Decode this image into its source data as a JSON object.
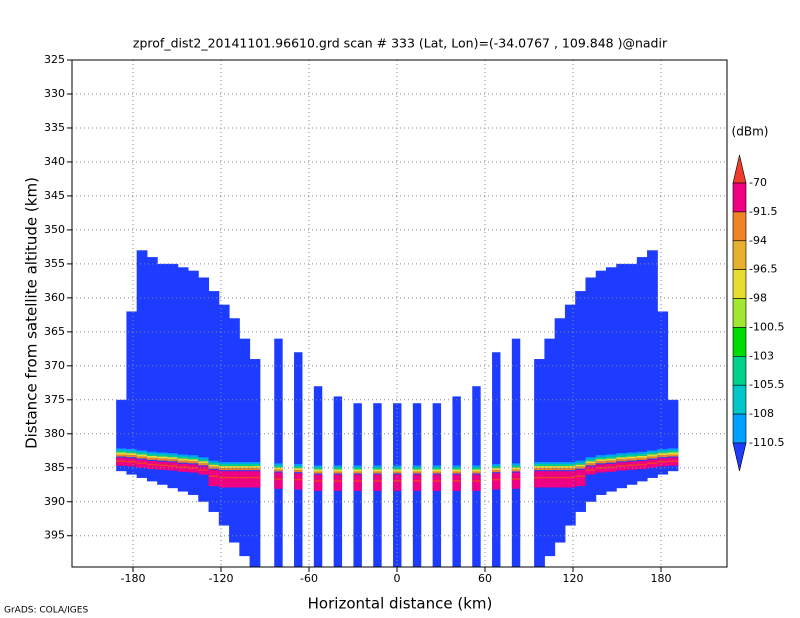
{
  "chart_data": {
    "type": "profile",
    "title": "zprof_dist2_20141101.96610.grd   scan # 333   (Lat, Lon)=(-34.0767 , 109.848 )@nadir",
    "x_label": "Horizontal distance (km)",
    "y_label": "Distance from satellite altitude (km)",
    "credit": "GrADS: COLA/IGES",
    "xlim": [
      -221.6,
      225
    ],
    "ylim": [
      325,
      399.6
    ],
    "xticks": [
      -180,
      -120,
      -60,
      0,
      60,
      120,
      180
    ],
    "yticks": [
      325,
      330,
      335,
      340,
      345,
      350,
      355,
      360,
      365,
      370,
      375,
      380,
      385,
      390,
      395
    ],
    "y_reversed": true,
    "grid": true,
    "x": [
      -188,
      -181,
      -174,
      -167,
      -160,
      -153,
      -146,
      -139,
      -132,
      -125,
      -118,
      -111,
      -104,
      -97,
      -81,
      -67.5,
      -54,
      -40.5,
      -27,
      -13.5,
      0,
      13.5,
      27,
      40.5,
      54,
      67.5,
      81,
      97,
      104,
      111,
      118,
      125,
      132,
      139,
      146,
      153,
      160,
      167,
      174,
      181,
      188
    ],
    "tops": [
      375,
      362,
      353,
      354,
      355,
      355,
      355.5,
      356,
      357,
      359,
      361,
      363,
      366,
      369,
      366,
      368,
      373,
      374.5,
      375.5,
      375.5,
      375.5,
      375.5,
      375.5,
      374.5,
      373,
      368,
      366,
      369,
      366,
      363,
      361,
      359,
      357,
      356,
      355.5,
      355,
      355,
      354,
      353,
      362,
      375
    ],
    "bottoms": [
      385.5,
      386,
      386.5,
      387,
      387.5,
      388,
      388.5,
      389,
      390,
      391.5,
      393.5,
      396,
      398,
      399.6,
      399.6,
      399.6,
      399.6,
      399.6,
      399.6,
      399.6,
      399.6,
      399.6,
      399.6,
      399.6,
      399.6,
      399.6,
      399.6,
      399.6,
      398,
      396,
      393.5,
      391.5,
      390,
      389,
      388.5,
      388,
      387.5,
      387,
      386.5,
      386,
      385.5
    ],
    "surface": [
      383.5,
      383.6,
      383.8,
      384,
      384.1,
      384.2,
      384.4,
      384.5,
      384.8,
      385.3,
      385.5,
      385.5,
      385.5,
      385.5,
      385.7,
      385.8,
      386,
      386,
      386,
      386,
      386,
      386,
      386,
      386,
      386,
      385.8,
      385.7,
      385.5,
      385.5,
      385.5,
      385.5,
      385.3,
      384.8,
      384.5,
      384.4,
      384.2,
      384.1,
      384,
      383.8,
      383.6,
      383.5
    ],
    "field_color": "#1e3cff",
    "surface_color": "#f00082",
    "colorbar_unit": "(dBm)",
    "colorbar_levels": [
      -70,
      -91.5,
      -94,
      -96.5,
      -98,
      -100.5,
      -103,
      -105.5,
      -108,
      -110.5
    ],
    "colorbar_colors": [
      "#f03c2b",
      "#f00082",
      "#f08228",
      "#e6af2d",
      "#e6dc32",
      "#a0e632",
      "#00dc00",
      "#00d28c",
      "#00c8c8",
      "#00a0ff",
      "#1e3cff"
    ]
  }
}
